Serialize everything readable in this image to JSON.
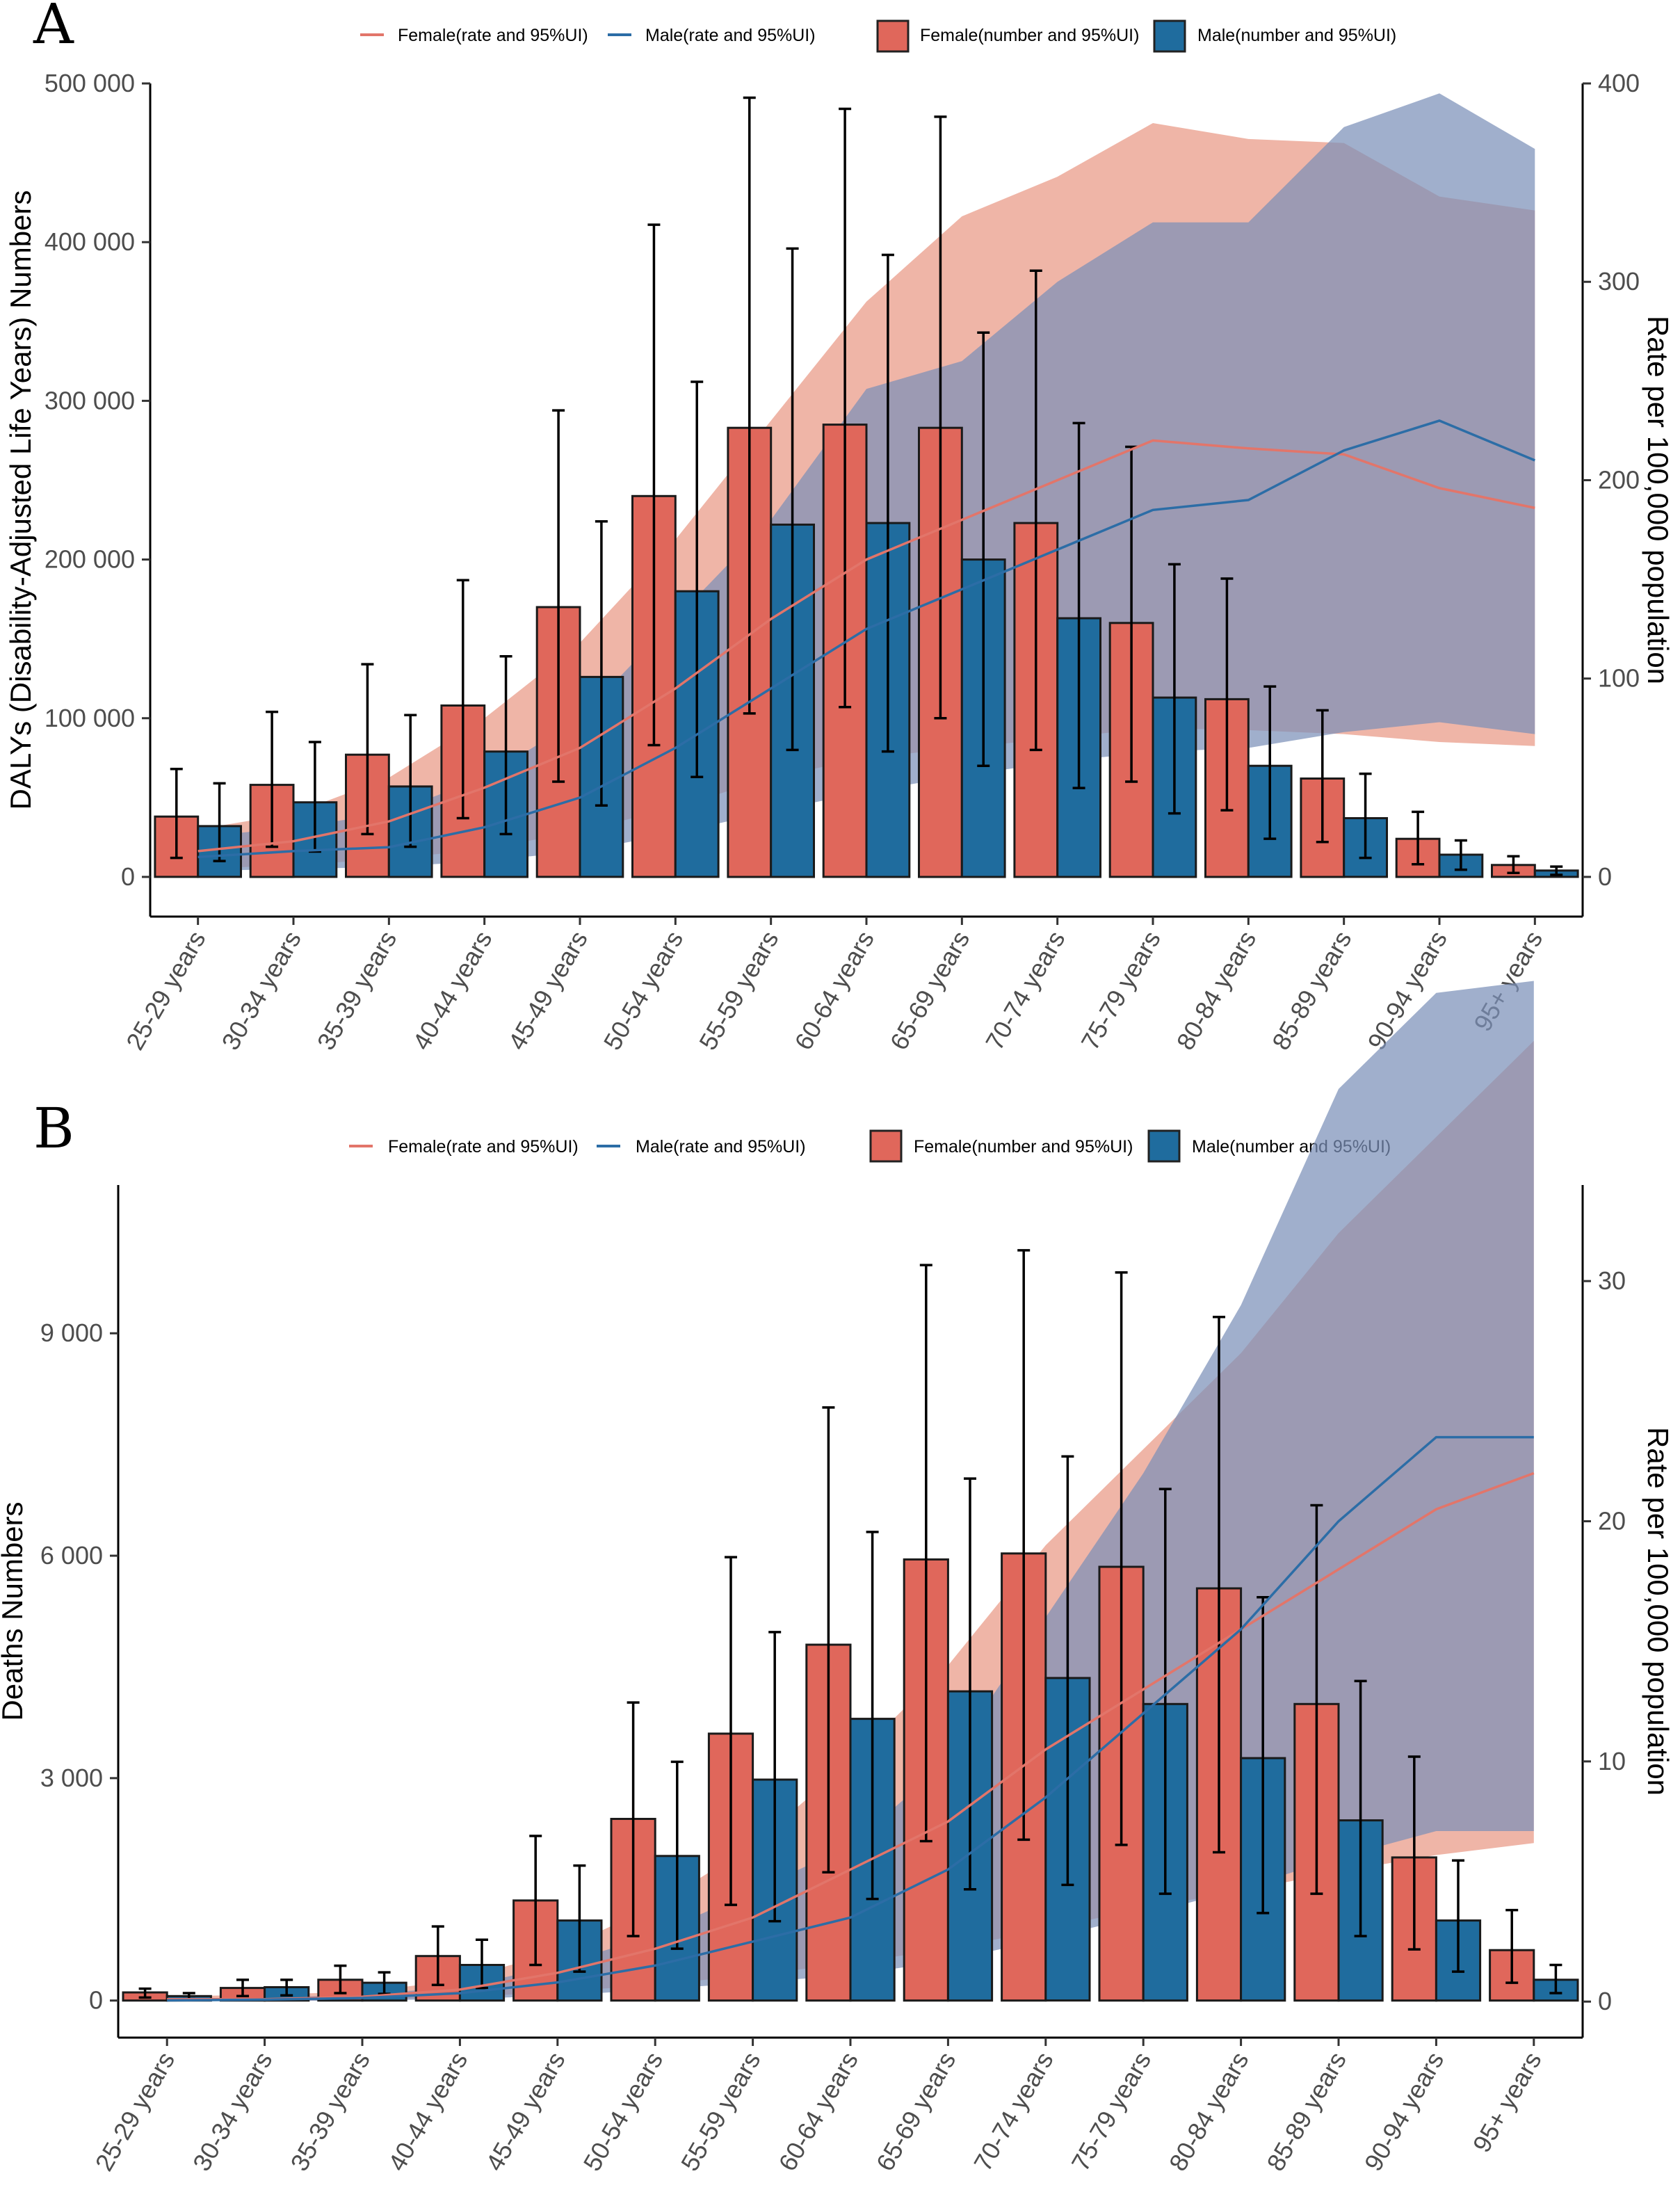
{
  "legend": {
    "female_rate": "Female(rate and 95%UI)",
    "male_rate": "Male(rate and 95%UI)",
    "female_number": "Female(number and 95%UI)",
    "male_number": "Male(number and 95%UI)"
  },
  "colors": {
    "female_bar": "#E0675B",
    "male_bar": "#1F6C9E",
    "female_band": "#EAA08E",
    "male_band": "#7B90B8",
    "female_line": "#E2756A",
    "male_line": "#2C6DA6"
  },
  "chart_data": [
    {
      "panel": "A",
      "type": "bar",
      "categories": [
        "25-29 years",
        "30-34 years",
        "35-39 years",
        "40-44 years",
        "45-49 years",
        "50-54 years",
        "55-59 years",
        "60-64 years",
        "65-69 years",
        "70-74 years",
        "75-79 years",
        "80-84 years",
        "85-89 years",
        "90-94 years",
        "95+ years"
      ],
      "ylabel": "DALYs (Disability-Adjusted Life Years) Numbers",
      "y2label": "Rate per 100,000 population",
      "ylim": [
        -25000,
        500000
      ],
      "y2lim": [
        -20,
        400
      ],
      "yticks": [
        0,
        100000,
        200000,
        300000,
        400000,
        500000
      ],
      "ytick_labels": [
        "0",
        "100 000",
        "200 000",
        "300 000",
        "400 000",
        "500 000"
      ],
      "y2ticks": [
        0,
        100,
        200,
        300,
        400
      ],
      "y2tick_labels": [
        "0",
        "100",
        "200",
        "300",
        "400"
      ],
      "bars": [
        {
          "name": "Female(number and 95%UI)",
          "values": [
            38000,
            58000,
            77000,
            108000,
            170000,
            240000,
            283000,
            285000,
            283000,
            223000,
            160000,
            112000,
            62000,
            24000,
            7500
          ],
          "lower": [
            12000,
            19000,
            27000,
            37000,
            60000,
            83000,
            103000,
            107000,
            100000,
            80000,
            60000,
            42000,
            22000,
            8000,
            2500
          ],
          "upper": [
            68000,
            104000,
            134000,
            187000,
            294000,
            411000,
            491000,
            484000,
            479000,
            382000,
            271000,
            188000,
            105000,
            41000,
            13000
          ]
        },
        {
          "name": "Male(number and 95%UI)",
          "values": [
            32000,
            47000,
            57000,
            79000,
            126000,
            180000,
            222000,
            223000,
            200000,
            163000,
            113000,
            70000,
            37000,
            14000,
            4000
          ],
          "lower": [
            10000,
            16000,
            19000,
            27000,
            45000,
            63000,
            80000,
            79000,
            70000,
            56000,
            40000,
            24000,
            12000,
            4500,
            1300
          ],
          "upper": [
            59000,
            85000,
            102000,
            139000,
            224000,
            312000,
            396000,
            392000,
            343000,
            286000,
            197000,
            120000,
            65000,
            23000,
            6500
          ]
        }
      ],
      "lines": [
        {
          "name": "Female(rate and 95%UI)",
          "values": [
            13,
            18,
            28,
            45,
            65,
            95,
            130,
            160,
            180,
            200,
            220,
            216,
            213,
            196,
            186
          ],
          "lower": [
            4,
            6,
            9,
            14,
            23,
            35,
            50,
            60,
            65,
            70,
            75,
            74,
            72,
            68,
            66
          ],
          "upper": [
            24,
            32,
            50,
            80,
            118,
            170,
            230,
            290,
            333,
            353,
            380,
            372,
            370,
            343,
            336
          ]
        },
        {
          "name": "Male(rate and 95%UI)",
          "values": [
            10,
            13,
            15,
            25,
            40,
            65,
            95,
            125,
            145,
            165,
            185,
            190,
            215,
            230,
            210
          ],
          "lower": [
            3,
            4,
            5,
            8,
            13,
            22,
            33,
            43,
            51,
            58,
            63,
            65,
            73,
            78,
            72
          ],
          "upper": [
            20,
            25,
            32,
            50,
            80,
            130,
            180,
            246,
            260,
            300,
            330,
            330,
            378,
            395,
            367
          ]
        }
      ]
    },
    {
      "panel": "B",
      "type": "bar",
      "categories": [
        "25-29 years",
        "30-34 years",
        "35-39 years",
        "40-44 years",
        "45-49 years",
        "50-54 years",
        "55-59 years",
        "60-64 years",
        "65-69 years",
        "70-74 years",
        "75-79 years",
        "80-84 years",
        "85-89 years",
        "90-94 years",
        "95+ years"
      ],
      "ylabel": "Deaths Numbers",
      "y2label": "Rate per 100,000 population",
      "ylim": [
        -500,
        11000
      ],
      "y2lim": [
        -1.5,
        34
      ],
      "yticks": [
        0,
        3000,
        6000,
        9000
      ],
      "ytick_labels": [
        "0",
        "3 000",
        "6 000",
        "9 000"
      ],
      "y2ticks": [
        0,
        10,
        20,
        30
      ],
      "y2tick_labels": [
        "0",
        "10",
        "20",
        "30"
      ],
      "bars": [
        {
          "name": "Female(number and 95%UI)",
          "values": [
            110,
            170,
            280,
            600,
            1350,
            2450,
            3600,
            4800,
            5950,
            6030,
            5850,
            5560,
            4000,
            1930,
            680
          ],
          "lower": [
            40,
            60,
            100,
            210,
            480,
            870,
            1290,
            1730,
            2150,
            2170,
            2100,
            2000,
            1440,
            690,
            240
          ],
          "upper": [
            160,
            280,
            470,
            1000,
            2220,
            4020,
            5980,
            8000,
            9920,
            10120,
            9820,
            9220,
            6680,
            3290,
            1220
          ]
        },
        {
          "name": "Male(number and 95%UI)",
          "values": [
            60,
            180,
            240,
            480,
            1080,
            1950,
            2980,
            3800,
            4170,
            4350,
            4000,
            3270,
            2430,
            1080,
            280
          ],
          "lower": [
            20,
            70,
            90,
            170,
            390,
            700,
            1070,
            1370,
            1500,
            1560,
            1440,
            1180,
            870,
            390,
            100
          ],
          "upper": [
            100,
            280,
            380,
            820,
            1820,
            3220,
            4970,
            6320,
            7040,
            7340,
            6900,
            5440,
            4310,
            1890,
            480
          ]
        }
      ],
      "lines": [
        {
          "name": "Female(rate and 95%UI)",
          "values": [
            0.1,
            0.1,
            0.2,
            0.5,
            1.2,
            2.2,
            3.5,
            5.5,
            7.5,
            10.5,
            13.0,
            15.5,
            18.0,
            20.5,
            22.0
          ],
          "lower": [
            0.03,
            0.03,
            0.07,
            0.18,
            0.4,
            0.7,
            1.1,
            1.6,
            2.2,
            3.0,
            3.9,
            4.6,
            5.4,
            6.1,
            6.6
          ],
          "upper": [
            0.2,
            0.3,
            0.4,
            0.9,
            2.1,
            4.0,
            6.5,
            10.0,
            14.0,
            19.0,
            23.0,
            27.0,
            32.0,
            36.0,
            40.0
          ]
        },
        {
          "name": "Male(rate and 95%UI)",
          "values": [
            0.05,
            0.08,
            0.15,
            0.35,
            0.8,
            1.5,
            2.5,
            3.5,
            5.5,
            8.5,
            12.0,
            15.5,
            20.0,
            23.5,
            23.5
          ],
          "lower": [
            0.02,
            0.02,
            0.05,
            0.1,
            0.25,
            0.5,
            0.8,
            1.1,
            1.7,
            2.6,
            3.6,
            4.7,
            6.0,
            7.1,
            7.1
          ],
          "upper": [
            0.1,
            0.15,
            0.3,
            0.6,
            1.5,
            2.8,
            4.6,
            6.5,
            10.0,
            16.0,
            22.0,
            29.0,
            38.0,
            42.0,
            42.5
          ]
        }
      ]
    }
  ]
}
